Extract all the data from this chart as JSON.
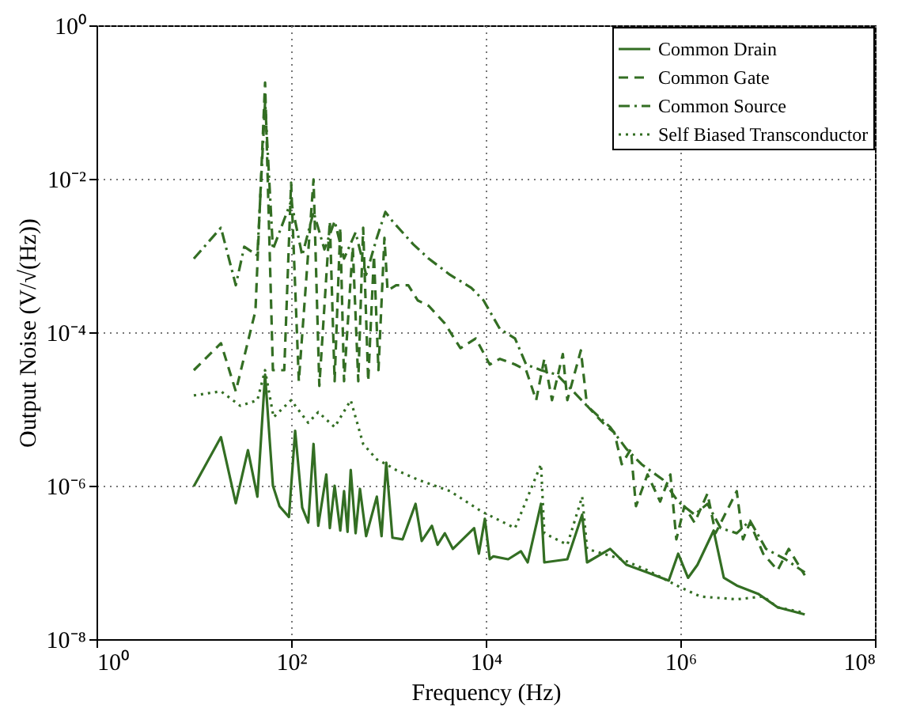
{
  "chart_data": {
    "type": "line",
    "xlabel": "Frequency (Hz)",
    "ylabel": "Output Noise (V/√(Hz))",
    "log": "xy",
    "grid": true,
    "legend": "top right",
    "xlim": [
      1,
      100000000
    ],
    "ylim": [
      1e-08,
      1
    ],
    "xticks": [
      {
        "value": 1,
        "label": "10⁰"
      },
      {
        "value": 100,
        "label": "10²"
      },
      {
        "value": 10000,
        "label": "10⁴"
      },
      {
        "value": 1000000,
        "label": "10⁶"
      },
      {
        "value": 100000000,
        "label": "10⁸"
      }
    ],
    "yticks": [
      {
        "value": 1e-08,
        "label": "10⁻⁸"
      },
      {
        "value": 1e-06,
        "label": "10⁻⁶"
      },
      {
        "value": 0.0001,
        "label": "10⁻⁴"
      },
      {
        "value": 0.01,
        "label": "10⁻²"
      },
      {
        "value": 1,
        "label": "10⁰"
      }
    ],
    "series": [
      {
        "name": "Common Drain",
        "color": "#336e23",
        "line_style": "solid",
        "x": [
          10,
          19,
          27,
          36,
          45,
          54,
          65,
          76,
          95,
          110,
          130,
          150,
          170,
          190,
          230,
          250,
          280,
          320,
          350,
          380,
          410,
          460,
          510,
          590,
          760,
          850,
          950,
          1100,
          1400,
          1900,
          2200,
          2800,
          3200,
          3800,
          4600,
          7600,
          8500,
          9800,
          11000,
          12000,
          17000,
          23000,
          27000,
          37000,
          40000,
          69000,
          98000,
          110000,
          190000,
          280000,
          460000,
          760000,
          950000,
          1200000,
          1500000,
          2200000,
          2800000,
          3800000,
          6300000,
          10000000,
          19000000
        ],
        "values": [
          9.8e-07,
          4.3e-06,
          5.9e-07,
          2.9e-06,
          7.2e-07,
          2.8e-05,
          1e-06,
          5.4e-07,
          3.9e-07,
          5.2e-06,
          5.2e-07,
          3.3e-07,
          3.5e-06,
          3e-07,
          1.4e-06,
          2.8e-07,
          1e-06,
          2.6e-07,
          8.5e-07,
          2.5e-07,
          1.6e-06,
          2.4e-07,
          9.1e-07,
          2.2e-07,
          7.2e-07,
          2.2e-07,
          2e-06,
          2.1e-07,
          2e-07,
          5.8e-07,
          1.9e-07,
          3e-07,
          1.7e-07,
          2.4e-07,
          1.5e-07,
          2.8e-07,
          1.3e-07,
          3.7e-07,
          1.1e-07,
          1.2e-07,
          1.1e-07,
          1.4e-07,
          1e-07,
          5.8e-07,
          1e-07,
          1.1e-07,
          4.2e-07,
          1e-07,
          1.5e-07,
          9.3e-08,
          7.4e-08,
          5.8e-08,
          1.3e-07,
          6.3e-08,
          9.3e-08,
          2.6e-07,
          6.3e-08,
          5e-08,
          3.9e-08,
          2.6e-08,
          2.1e-08
        ]
      },
      {
        "name": "Common Gate",
        "color": "#336e23",
        "line_style": "dashed",
        "x": [
          10,
          19,
          27,
          43,
          54,
          65,
          85,
          100,
          120,
          170,
          195,
          250,
          280,
          320,
          350,
          430,
          490,
          550,
          620,
          710,
          790,
          910,
          980,
          1200,
          1600,
          2000,
          2600,
          3800,
          5500,
          7900,
          11000,
          14000,
          20000,
          26000,
          33000,
          40000,
          48000,
          62000,
          69000,
          95000,
          110000,
          160000,
          210000,
          250000,
          310000,
          350000,
          460000,
          620000,
          790000,
          910000,
          1100000,
          1400000,
          1900000,
          2300000,
          3800000,
          4400000,
          5200000,
          7100000,
          10000000,
          13000000,
          19000000
        ],
        "values": [
          3.2e-05,
          7.2e-05,
          1.7e-05,
          0.00019,
          0.18,
          3.2e-05,
          3.2e-05,
          0.0089,
          2.3e-05,
          0.0098,
          2e-05,
          0.0028,
          2.3e-05,
          0.0023,
          2.3e-05,
          0.0013,
          2.3e-05,
          0.0023,
          2.3e-05,
          0.001,
          3.2e-05,
          0.0017,
          0.00035,
          0.00041,
          0.00041,
          0.00026,
          0.00022,
          0.00013,
          6.2e-05,
          8.3e-05,
          3.8e-05,
          4.5e-05,
          3.8e-05,
          3.2e-05,
          1.3e-05,
          4.5e-05,
          1.3e-05,
          5.2e-05,
          1.3e-05,
          5.8e-05,
          1.1e-05,
          6.6e-06,
          4.9e-06,
          1.9e-06,
          3e-06,
          5.4e-07,
          1.4e-06,
          6.2e-07,
          1.4e-06,
          2e-07,
          5.4e-07,
          3.3e-07,
          7.9e-07,
          2.4e-07,
          8.5e-07,
          2e-07,
          3.3e-07,
          1.3e-07,
          7.9e-08,
          1.5e-07,
          6.8e-08
        ]
      },
      {
        "name": "Common Source",
        "color": "#336e23",
        "line_style": "dashdot",
        "x": [
          10,
          19,
          27,
          33,
          45,
          54,
          65,
          100,
          130,
          170,
          220,
          280,
          350,
          460,
          590,
          760,
          930,
          1100,
          1800,
          2600,
          4300,
          7100,
          9500,
          14000,
          20000,
          26000,
          37000,
          54000,
          79000,
          110000,
          190000,
          280000,
          400000,
          660000,
          950000,
          1400000,
          1900000,
          2600000,
          3800000,
          5200000,
          7600000,
          12000000,
          19000000
        ],
        "values": [
          0.00091,
          0.0023,
          0.00041,
          0.0013,
          0.001,
          0.1,
          0.0012,
          0.0051,
          0.001,
          0.0037,
          0.0012,
          0.0028,
          0.00091,
          0.002,
          0.00056,
          0.0017,
          0.0037,
          0.0028,
          0.0014,
          0.00091,
          0.00056,
          0.00038,
          0.00026,
          0.00011,
          8.3e-05,
          3.8e-05,
          3.2e-05,
          2.8e-05,
          1.7e-05,
          1.1e-05,
          5.8e-06,
          3e-06,
          1.9e-06,
          1.2e-06,
          6.2e-07,
          4.2e-07,
          5.8e-07,
          2.8e-07,
          2.4e-07,
          3.5e-07,
          1.5e-07,
          1.1e-07,
          7.4e-08
        ]
      },
      {
        "name": "Self Biased Transconductor",
        "color": "#336e23",
        "line_style": "dotted",
        "x": [
          10,
          19,
          30,
          45,
          54,
          66,
          100,
          150,
          190,
          280,
          410,
          550,
          760,
          950,
          1200,
          2000,
          4300,
          9100,
          20000,
          37000,
          40000,
          69000,
          98000,
          110000,
          250000,
          460000,
          950000,
          1600000,
          3800000,
          7100000,
          10000000,
          19000000
        ],
        "values": [
          1.5e-05,
          1.7e-05,
          1.1e-05,
          1.3e-05,
          3.2e-05,
          7.8e-06,
          1.3e-05,
          6.6e-06,
          9.1e-06,
          5.8e-06,
          1.3e-05,
          3.5e-06,
          2.2e-06,
          1.9e-06,
          1.6e-06,
          1.2e-06,
          8.5e-07,
          4.6e-07,
          2.8e-07,
          1.9e-06,
          2.4e-07,
          1.7e-07,
          7.2e-07,
          1.5e-07,
          1.1e-07,
          7.9e-08,
          4.9e-08,
          3.6e-08,
          3.3e-08,
          3.6e-08,
          2.6e-08,
          2.2e-08
        ]
      }
    ]
  }
}
